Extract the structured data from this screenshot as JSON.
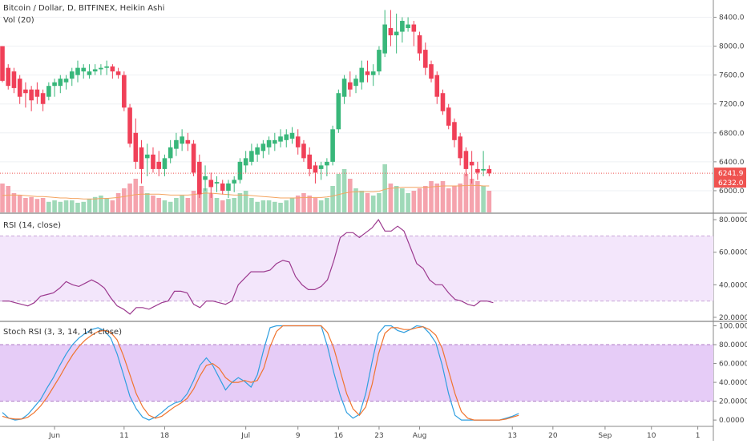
{
  "chart_data": [
    {
      "type": "candlestick",
      "title": "Bitcoin / Dollar, D, BITFINEX, Heikin Ashi",
      "volume_label": "Vol (20)",
      "ylim": [
        5700,
        8550
      ],
      "yticks": [
        "8400.0",
        "8000.0",
        "7600.0",
        "7200.0",
        "6800.0",
        "6400.0",
        "6000.0"
      ],
      "ytick_values": [
        8400,
        8000,
        7600,
        7200,
        6800,
        6400,
        6000
      ],
      "price_tag": "6241.9",
      "price_tag_value": 6241.9,
      "price_tag2": "6232.0",
      "price_tag2_value": 6232.0,
      "ohlc": [
        [
          8000,
          8000,
          7500,
          7520
        ],
        [
          7700,
          7750,
          7400,
          7450
        ],
        [
          7650,
          7700,
          7350,
          7420
        ],
        [
          7550,
          7600,
          7200,
          7300
        ],
        [
          7400,
          7500,
          7150,
          7350
        ],
        [
          7400,
          7450,
          7100,
          7250
        ],
        [
          7400,
          7500,
          7200,
          7300
        ],
        [
          7350,
          7400,
          7100,
          7200
        ],
        [
          7300,
          7500,
          7250,
          7450
        ],
        [
          7450,
          7550,
          7300,
          7500
        ],
        [
          7450,
          7600,
          7350,
          7550
        ],
        [
          7500,
          7600,
          7400,
          7550
        ],
        [
          7550,
          7700,
          7450,
          7650
        ],
        [
          7600,
          7800,
          7500,
          7700
        ],
        [
          7650,
          7750,
          7550,
          7700
        ],
        [
          7600,
          7750,
          7550,
          7650
        ],
        [
          7650,
          7750,
          7600,
          7680
        ],
        [
          7680,
          7750,
          7600,
          7700
        ],
        [
          7700,
          7800,
          7600,
          7720
        ],
        [
          7720,
          7750,
          7550,
          7650
        ],
        [
          7650,
          7700,
          7550,
          7600
        ],
        [
          7600,
          7650,
          7100,
          7150
        ],
        [
          7150,
          7200,
          6600,
          6650
        ],
        [
          6800,
          7000,
          6300,
          6400
        ],
        [
          6600,
          6700,
          6100,
          6300
        ],
        [
          6450,
          6650,
          6200,
          6500
        ],
        [
          6500,
          6600,
          6250,
          6300
        ],
        [
          6400,
          6550,
          6200,
          6300
        ],
        [
          6300,
          6500,
          6200,
          6450
        ],
        [
          6450,
          6700,
          6380,
          6600
        ],
        [
          6580,
          6800,
          6480,
          6700
        ],
        [
          6650,
          6850,
          6550,
          6750
        ],
        [
          6700,
          6800,
          6550,
          6650
        ],
        [
          6650,
          6700,
          6200,
          6250
        ],
        [
          6400,
          6500,
          5900,
          5950
        ],
        [
          6150,
          6350,
          6000,
          6200
        ],
        [
          6150,
          6250,
          5900,
          6050
        ],
        [
          6100,
          6200,
          5980,
          6120
        ],
        [
          6100,
          6150,
          5950,
          6000
        ],
        [
          6000,
          6150,
          5900,
          6100
        ],
        [
          6100,
          6200,
          5980,
          6150
        ],
        [
          6150,
          6450,
          6100,
          6400
        ],
        [
          6350,
          6550,
          6250,
          6450
        ],
        [
          6400,
          6650,
          6350,
          6550
        ],
        [
          6500,
          6650,
          6400,
          6600
        ],
        [
          6550,
          6700,
          6450,
          6650
        ],
        [
          6600,
          6750,
          6500,
          6700
        ],
        [
          6650,
          6800,
          6550,
          6700
        ],
        [
          6680,
          6850,
          6600,
          6750
        ],
        [
          6700,
          6850,
          6600,
          6780
        ],
        [
          6720,
          6880,
          6650,
          6800
        ],
        [
          6750,
          6850,
          6500,
          6600
        ],
        [
          6650,
          6700,
          6400,
          6450
        ],
        [
          6500,
          6600,
          6200,
          6300
        ],
        [
          6350,
          6400,
          6100,
          6250
        ],
        [
          6300,
          6400,
          6150,
          6350
        ],
        [
          6350,
          6450,
          6200,
          6400
        ],
        [
          6400,
          6900,
          6350,
          6850
        ],
        [
          6850,
          7400,
          6800,
          7350
        ],
        [
          7300,
          7600,
          7200,
          7550
        ],
        [
          7500,
          7650,
          7300,
          7400
        ],
        [
          7450,
          7600,
          7350,
          7550
        ],
        [
          7500,
          7800,
          7400,
          7700
        ],
        [
          7650,
          7800,
          7500,
          7600
        ],
        [
          7600,
          7750,
          7450,
          7650
        ],
        [
          7650,
          8000,
          7600,
          7950
        ],
        [
          7900,
          8500,
          7850,
          8300
        ],
        [
          8250,
          8500,
          8000,
          8150
        ],
        [
          8150,
          8450,
          7900,
          8200
        ],
        [
          8200,
          8400,
          8050,
          8350
        ],
        [
          8250,
          8400,
          8200,
          8300
        ],
        [
          8300,
          8350,
          8000,
          8200
        ],
        [
          8150,
          8200,
          7800,
          7900
        ],
        [
          7950,
          8050,
          7600,
          7700
        ],
        [
          7750,
          7800,
          7500,
          7550
        ],
        [
          7600,
          7650,
          7200,
          7300
        ],
        [
          7350,
          7400,
          7050,
          7100
        ],
        [
          7150,
          7200,
          6850,
          6900
        ],
        [
          6950,
          7000,
          6600,
          6700
        ],
        [
          6750,
          6800,
          6350,
          6450
        ],
        [
          6550,
          6600,
          6200,
          6300
        ],
        [
          6400,
          6550,
          6100,
          6350
        ],
        [
          6300,
          6400,
          6150,
          6250
        ],
        [
          6280,
          6550,
          6200,
          6300
        ],
        [
          6300,
          6350,
          6200,
          6240
        ]
      ],
      "volume": [
        0.6,
        0.55,
        0.4,
        0.35,
        0.3,
        0.32,
        0.28,
        0.3,
        0.22,
        0.25,
        0.22,
        0.25,
        0.25,
        0.2,
        0.22,
        0.28,
        0.32,
        0.35,
        0.3,
        0.25,
        0.4,
        0.5,
        0.6,
        0.7,
        0.55,
        0.4,
        0.35,
        0.3,
        0.25,
        0.22,
        0.3,
        0.35,
        0.3,
        0.45,
        0.7,
        0.5,
        0.4,
        0.3,
        0.25,
        0.28,
        0.3,
        0.4,
        0.45,
        0.3,
        0.22,
        0.25,
        0.25,
        0.22,
        0.2,
        0.25,
        0.3,
        0.35,
        0.4,
        0.35,
        0.3,
        0.25,
        0.3,
        0.55,
        0.8,
        0.9,
        0.7,
        0.5,
        0.45,
        0.4,
        0.35,
        0.4,
        1.0,
        0.6,
        0.55,
        0.5,
        0.4,
        0.45,
        0.5,
        0.55,
        0.65,
        0.6,
        0.65,
        0.5,
        0.55,
        0.6,
        0.8,
        0.7,
        0.65,
        0.55,
        0.45
      ],
      "volume_ma": [
        0.35,
        0.36,
        0.36,
        0.36,
        0.35,
        0.34,
        0.33,
        0.33,
        0.32,
        0.31,
        0.3,
        0.3,
        0.29,
        0.29,
        0.28,
        0.28,
        0.28,
        0.29,
        0.29,
        0.3,
        0.31,
        0.33,
        0.35,
        0.37,
        0.38,
        0.38,
        0.38,
        0.38,
        0.37,
        0.36,
        0.36,
        0.36,
        0.36,
        0.37,
        0.39,
        0.4,
        0.4,
        0.39,
        0.38,
        0.37,
        0.36,
        0.36,
        0.36,
        0.35,
        0.34,
        0.33,
        0.32,
        0.31,
        0.3,
        0.3,
        0.3,
        0.3,
        0.31,
        0.31,
        0.31,
        0.31,
        0.32,
        0.34,
        0.37,
        0.4,
        0.42,
        0.43,
        0.43,
        0.43,
        0.43,
        0.44,
        0.48,
        0.5,
        0.51,
        0.52,
        0.52,
        0.52,
        0.52,
        0.52,
        0.53,
        0.54,
        0.55,
        0.55,
        0.55,
        0.55,
        0.56,
        0.56,
        0.56,
        0.55,
        0.55
      ],
      "x_labels": [
        "Jun",
        "11",
        "18",
        "Jul",
        "9",
        "16",
        "23",
        "Aug",
        "13",
        "20",
        "Sep",
        "10",
        "1"
      ],
      "x_label_index": [
        9,
        21,
        28,
        42,
        51,
        58,
        65,
        72,
        88,
        95,
        104,
        112,
        120
      ],
      "x_count": 123
    },
    {
      "type": "line",
      "title": "RSI (14, close)",
      "ylim": [
        18,
        83
      ],
      "yticks": [
        "80.0000",
        "60.0000",
        "40.0000",
        "20.0000"
      ],
      "ytick_values": [
        80,
        60,
        40,
        20
      ],
      "bands": [
        30,
        70
      ],
      "values": [
        30,
        30,
        29,
        28,
        27,
        29,
        33,
        34,
        35,
        38,
        42,
        40,
        39,
        41,
        43,
        41,
        38,
        32,
        27,
        25,
        22,
        26,
        26,
        25,
        27,
        29,
        30,
        36,
        36,
        35,
        28,
        26,
        30,
        30,
        29,
        28,
        30,
        40,
        44,
        48,
        48,
        48,
        49,
        53,
        55,
        54,
        45,
        40,
        37,
        37,
        39,
        43,
        55,
        69,
        72,
        72,
        69,
        72,
        75,
        80,
        73,
        73,
        76,
        73,
        63,
        53,
        50,
        43,
        40,
        40,
        35,
        31,
        30,
        28,
        27,
        30,
        30,
        29
      ]
    },
    {
      "type": "line",
      "title": "Stoch RSI (3, 3, 14, 14, close)",
      "ylim": [
        -5,
        103
      ],
      "yticks": [
        "100.0000",
        "80.0000",
        "60.0000",
        "40.0000",
        "20.0000",
        "0.0000"
      ],
      "ytick_values": [
        100,
        80,
        60,
        40,
        20,
        0
      ],
      "bands": [
        20,
        80
      ],
      "series": [
        {
          "values": [
            8,
            2,
            0,
            1,
            6,
            14,
            22,
            34,
            45,
            58,
            70,
            80,
            87,
            92,
            96,
            98,
            95,
            87,
            70,
            48,
            25,
            12,
            3,
            0,
            3,
            8,
            14,
            18,
            20,
            28,
            42,
            58,
            66,
            58,
            45,
            32,
            40,
            45,
            41,
            35,
            48,
            75,
            98,
            100,
            100,
            100,
            100,
            100,
            100,
            100,
            100,
            78,
            50,
            26,
            8,
            2,
            6,
            28,
            62,
            92,
            100,
            100,
            95,
            93,
            96,
            100,
            99,
            92,
            82,
            58,
            28,
            5,
            0,
            0,
            0,
            0,
            0,
            0,
            0,
            2,
            4,
            7
          ]
        },
        {
          "values": [
            4,
            2,
            1,
            1,
            3,
            8,
            15,
            24,
            35,
            46,
            58,
            69,
            78,
            85,
            90,
            94,
            95,
            93,
            85,
            68,
            48,
            28,
            14,
            5,
            2,
            4,
            9,
            14,
            18,
            23,
            33,
            47,
            58,
            60,
            55,
            45,
            40,
            40,
            42,
            40,
            42,
            55,
            78,
            94,
            100,
            100,
            100,
            100,
            100,
            100,
            100,
            93,
            76,
            52,
            28,
            12,
            5,
            14,
            38,
            70,
            92,
            98,
            98,
            96,
            96,
            98,
            99,
            96,
            90,
            76,
            52,
            28,
            9,
            2,
            0,
            0,
            0,
            0,
            0,
            1,
            3,
            5
          ]
        }
      ]
    }
  ]
}
